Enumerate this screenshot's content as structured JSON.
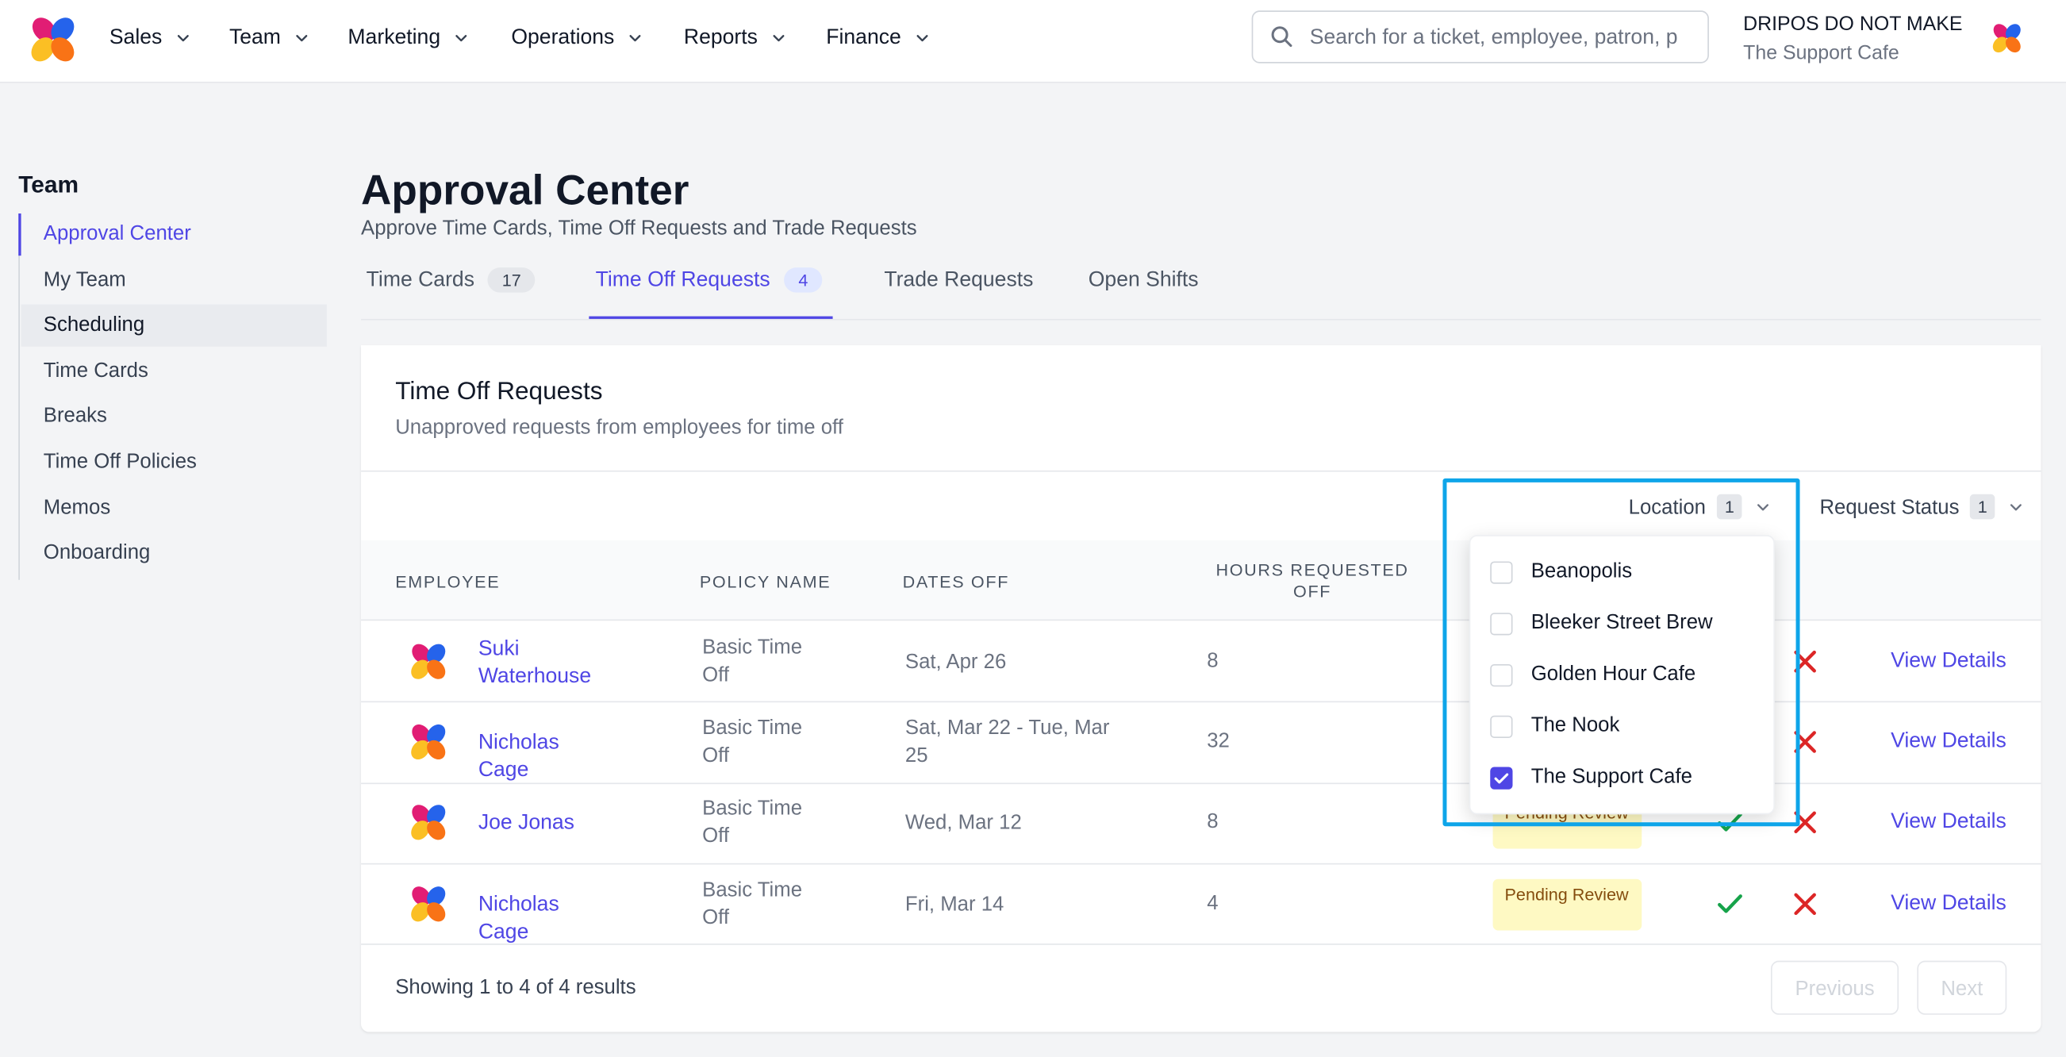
{
  "nav": {
    "items": [
      "Sales",
      "Team",
      "Marketing",
      "Operations",
      "Reports",
      "Finance"
    ],
    "search_placeholder": "Search for a ticket, employee, patron, p",
    "account_name": "DRIPOS DO NOT MAKE",
    "account_location": "The Support Cafe"
  },
  "sidebar": {
    "title": "Team",
    "items": [
      "Approval Center",
      "My Team",
      "Scheduling",
      "Time Cards",
      "Breaks",
      "Time Off Policies",
      "Memos",
      "Onboarding"
    ]
  },
  "header": {
    "title": "Approval Center",
    "subtitle": "Approve Time Cards, Time Off Requests and Trade Requests"
  },
  "tabs": [
    {
      "label": "Time Cards",
      "count": "17"
    },
    {
      "label": "Time Off Requests",
      "count": "4"
    },
    {
      "label": "Trade Requests"
    },
    {
      "label": "Open Shifts"
    }
  ],
  "card": {
    "title": "Time Off Requests",
    "subtitle": "Unapproved requests from employees for time off"
  },
  "filters": [
    {
      "label": "Location",
      "count": "1"
    },
    {
      "label": "Request Status",
      "count": "1"
    }
  ],
  "location_options": [
    {
      "label": "Beanopolis",
      "checked": false
    },
    {
      "label": "Bleeker Street Brew",
      "checked": false
    },
    {
      "label": "Golden Hour Cafe",
      "checked": false
    },
    {
      "label": "The Nook",
      "checked": false
    },
    {
      "label": "The Support Cafe",
      "checked": true
    }
  ],
  "table": {
    "headers": [
      "EMPLOYEE",
      "POLICY NAME",
      "DATES OFF",
      "HOURS REQUESTED OFF"
    ],
    "rows": [
      {
        "employee": "Suki Waterhouse",
        "policy": "Basic Time Off",
        "dates": "Sat, Apr 26",
        "hours": "8",
        "action": "View Details"
      },
      {
        "employee": "Nicholas Cage",
        "policy": "Basic Time Off",
        "dates": "Sat, Mar 22 - Tue, Mar 25",
        "hours": "32",
        "action": "View Details"
      },
      {
        "employee": "Joe Jonas",
        "policy": "Basic Time Off",
        "dates": "Wed, Mar 12",
        "hours": "8",
        "status": "Pending Review",
        "action": "View Details"
      },
      {
        "employee": "Nicholas Cage",
        "policy": "Basic Time Off",
        "dates": "Fri, Mar 14",
        "hours": "4",
        "status": "Pending Review",
        "action": "View Details"
      }
    ]
  },
  "footer": {
    "summary": "Showing 1 to 4 of 4 results",
    "previous": "Previous",
    "next": "Next"
  }
}
